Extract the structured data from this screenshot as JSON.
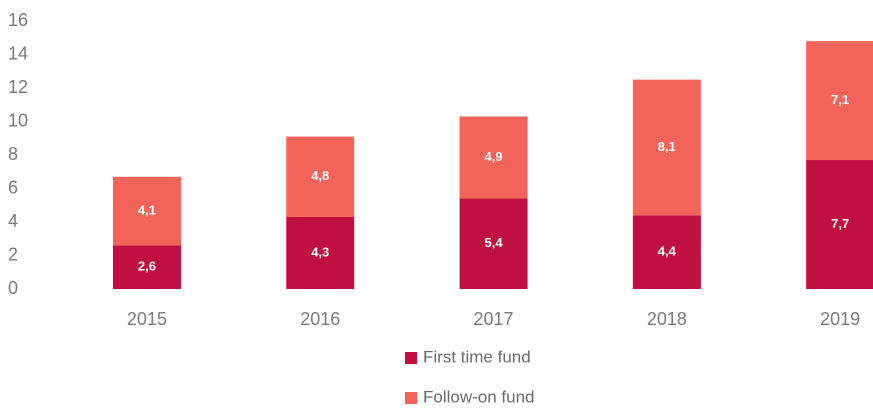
{
  "chart_data": {
    "type": "stacked_bar",
    "categories": [
      "2015",
      "2016",
      "2017",
      "2018",
      "2019"
    ],
    "series": [
      {
        "name": "First time fund",
        "color": "#c0103f",
        "values": [
          2.6,
          4.3,
          5.4,
          4.4,
          7.7
        ],
        "value_labels": [
          "2,6",
          "4,3",
          "5,4",
          "4,4",
          "7,7"
        ]
      },
      {
        "name": "Follow-on fund",
        "color": "#f2635a",
        "values": [
          4.1,
          4.8,
          4.9,
          8.1,
          7.1
        ],
        "value_labels": [
          "4,1",
          "4,8",
          "4,9",
          "8,1",
          "7,1"
        ]
      }
    ],
    "ylim": [
      0,
      16
    ],
    "yticks": [
      0,
      2,
      4,
      6,
      8,
      10,
      12,
      14,
      16
    ],
    "grid": false
  }
}
